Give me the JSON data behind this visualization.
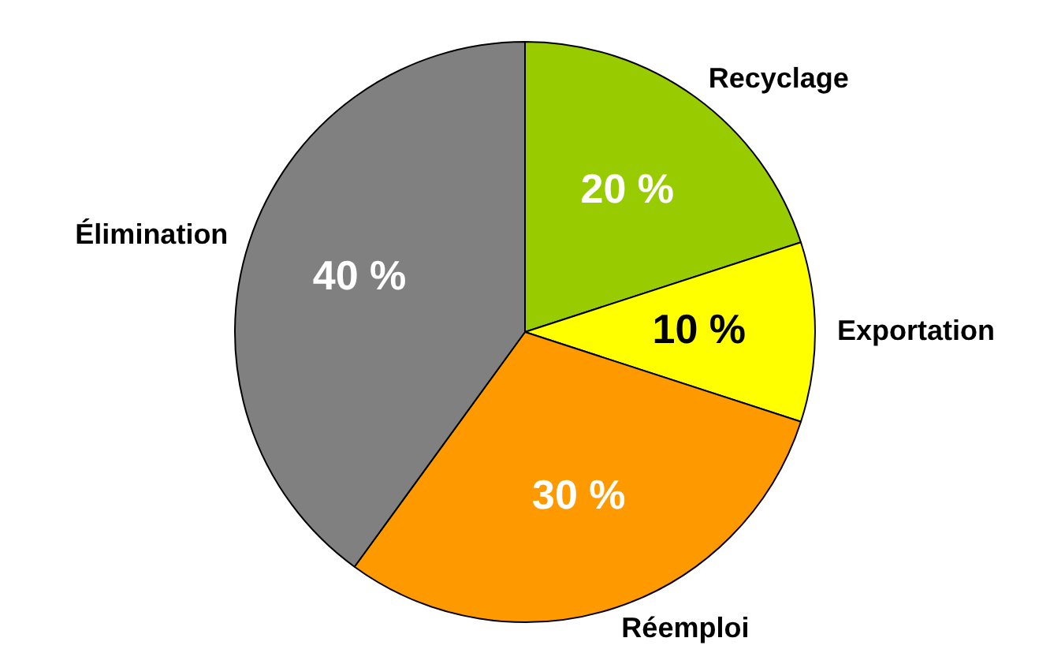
{
  "chart_data": {
    "type": "pie",
    "categories": [
      "Recyclage",
      "Exportation",
      "Réemploi",
      "Élimination"
    ],
    "values": [
      20,
      10,
      30,
      40
    ],
    "colors": [
      "#99cc00",
      "#ffff00",
      "#ff9900",
      "#808080"
    ],
    "value_labels": [
      "20 %",
      "10 %",
      "30 %",
      "40 %"
    ],
    "legend": false
  }
}
